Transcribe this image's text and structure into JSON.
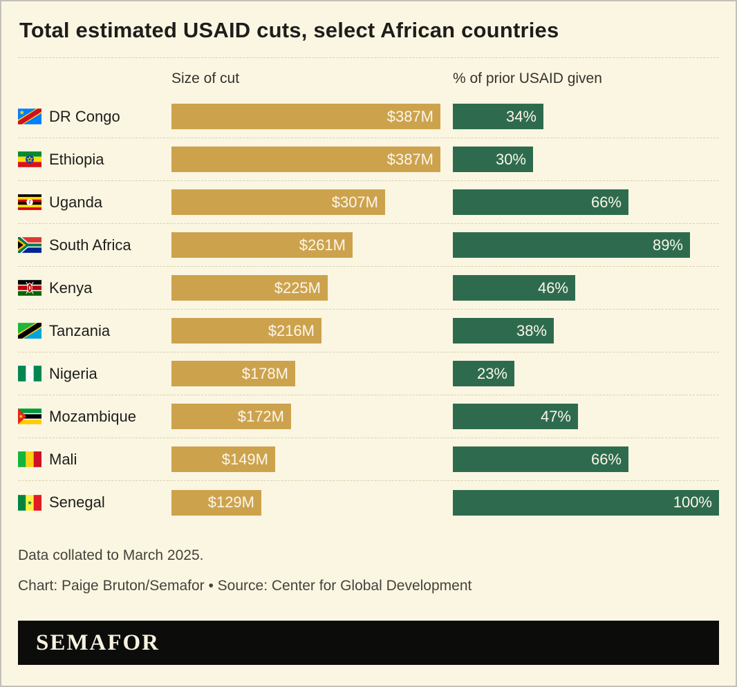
{
  "title": "Total estimated USAID cuts, select African countries",
  "columns": {
    "cut": "Size of cut",
    "pct": "% of prior USAID given"
  },
  "chart_data": {
    "type": "bar",
    "title": "Total estimated USAID cuts, select African countries",
    "series": [
      {
        "name": "Size of cut",
        "unit": "US$ millions"
      },
      {
        "name": "% of prior USAID given",
        "unit": "percent"
      }
    ],
    "cut_axis_max": 387,
    "pct_axis_max": 100,
    "colors": {
      "cut_bar": "#cda24d",
      "pct_bar": "#2e6b4e",
      "background": "#fbf6e2"
    },
    "rows": [
      {
        "country": "DR Congo",
        "flag_icon": "dr-congo-flag-icon",
        "cut_label": "$387M",
        "cut_value": 387,
        "pct_label": "34%",
        "pct_value": 34
      },
      {
        "country": "Ethiopia",
        "flag_icon": "ethiopia-flag-icon",
        "cut_label": "$387M",
        "cut_value": 387,
        "pct_label": "30%",
        "pct_value": 30
      },
      {
        "country": "Uganda",
        "flag_icon": "uganda-flag-icon",
        "cut_label": "$307M",
        "cut_value": 307,
        "pct_label": "66%",
        "pct_value": 66
      },
      {
        "country": "South Africa",
        "flag_icon": "south-africa-flag-icon",
        "cut_label": "$261M",
        "cut_value": 261,
        "pct_label": "89%",
        "pct_value": 89
      },
      {
        "country": "Kenya",
        "flag_icon": "kenya-flag-icon",
        "cut_label": "$225M",
        "cut_value": 225,
        "pct_label": "46%",
        "pct_value": 46
      },
      {
        "country": "Tanzania",
        "flag_icon": "tanzania-flag-icon",
        "cut_label": "$216M",
        "cut_value": 216,
        "pct_label": "38%",
        "pct_value": 38
      },
      {
        "country": "Nigeria",
        "flag_icon": "nigeria-flag-icon",
        "cut_label": "$178M",
        "cut_value": 178,
        "pct_label": "23%",
        "pct_value": 23
      },
      {
        "country": "Mozambique",
        "flag_icon": "mozambique-flag-icon",
        "cut_label": "$172M",
        "cut_value": 172,
        "pct_label": "47%",
        "pct_value": 47
      },
      {
        "country": "Mali",
        "flag_icon": "mali-flag-icon",
        "cut_label": "$149M",
        "cut_value": 149,
        "pct_label": "66%",
        "pct_value": 66
      },
      {
        "country": "Senegal",
        "flag_icon": "senegal-flag-icon",
        "cut_label": "$129M",
        "cut_value": 129,
        "pct_label": "100%",
        "pct_value": 100
      }
    ]
  },
  "footer": {
    "note": "Data collated to March 2025.",
    "credit": "Chart: Paige Bruton/Semafor • Source: Center for Global Development",
    "brand": "SEMAFOR"
  }
}
